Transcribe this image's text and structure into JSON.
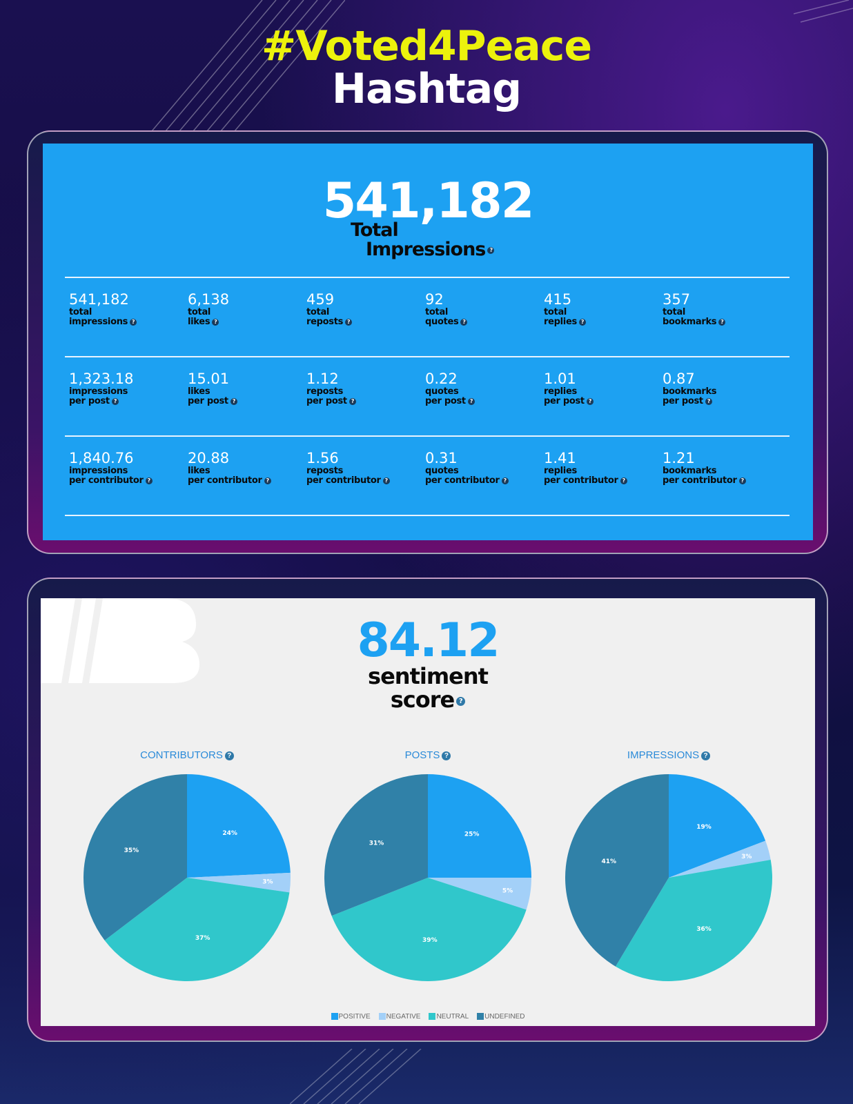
{
  "header": {
    "hashtag": "#Voted4Peace",
    "subtitle": "Hashtag"
  },
  "impressions_panel": {
    "total_value": "541,182",
    "total_label_line1": "Total",
    "total_label_line2": "Impressions",
    "rows": [
      [
        {
          "value": "541,182",
          "l1": "total",
          "l2": "impressions"
        },
        {
          "value": "6,138",
          "l1": "total",
          "l2": "likes"
        },
        {
          "value": "459",
          "l1": "total",
          "l2": "reposts"
        },
        {
          "value": "92",
          "l1": "total",
          "l2": "quotes"
        },
        {
          "value": "415",
          "l1": "total",
          "l2": "replies"
        },
        {
          "value": "357",
          "l1": "total",
          "l2": "bookmarks"
        }
      ],
      [
        {
          "value": "1,323.18",
          "l1": "impressions",
          "l2": "per post"
        },
        {
          "value": "15.01",
          "l1": "likes",
          "l2": "per post"
        },
        {
          "value": "1.12",
          "l1": "reposts",
          "l2": "per post"
        },
        {
          "value": "0.22",
          "l1": "quotes",
          "l2": "per post"
        },
        {
          "value": "1.01",
          "l1": "replies",
          "l2": "per post"
        },
        {
          "value": "0.87",
          "l1": "bookmarks",
          "l2": "per post"
        }
      ],
      [
        {
          "value": "1,840.76",
          "l1": "impressions",
          "l2": "per contributor"
        },
        {
          "value": "20.88",
          "l1": "likes",
          "l2": "per contributor"
        },
        {
          "value": "1.56",
          "l1": "reposts",
          "l2": "per contributor"
        },
        {
          "value": "0.31",
          "l1": "quotes",
          "l2": "per contributor"
        },
        {
          "value": "1.41",
          "l1": "replies",
          "l2": "per contributor"
        },
        {
          "value": "1.21",
          "l1": "bookmarks",
          "l2": "per contributor"
        }
      ]
    ]
  },
  "sentiment": {
    "score": "84.12",
    "label_line1": "sentiment",
    "label_line2": "score"
  },
  "colors": {
    "positive": "#1da1f2",
    "negative": "#a3d0f8",
    "neutral": "#30c7cb",
    "undefined": "#3081a8"
  },
  "chart_data": [
    {
      "type": "pie",
      "title": "CONTRIBUTORS",
      "categories": [
        "POSITIVE",
        "NEGATIVE",
        "NEUTRAL",
        "UNDEFINED"
      ],
      "values": [
        24,
        3,
        37,
        35
      ],
      "labels": [
        "24%",
        "3%",
        "37%",
        "35%"
      ]
    },
    {
      "type": "pie",
      "title": "POSTS",
      "categories": [
        "POSITIVE",
        "NEGATIVE",
        "NEUTRAL",
        "UNDEFINED"
      ],
      "values": [
        25,
        5,
        39,
        31
      ],
      "labels": [
        "25%",
        "5%",
        "39%",
        "31%"
      ]
    },
    {
      "type": "pie",
      "title": "IMPRESSIONS",
      "categories": [
        "POSITIVE",
        "NEGATIVE",
        "NEUTRAL",
        "UNDEFINED"
      ],
      "values": [
        19,
        3,
        36,
        41
      ],
      "labels": [
        "19%",
        "3%",
        "36%",
        "41%"
      ]
    }
  ],
  "legend": [
    "POSITIVE",
    "NEGATIVE",
    "NEUTRAL",
    "UNDEFINED"
  ]
}
